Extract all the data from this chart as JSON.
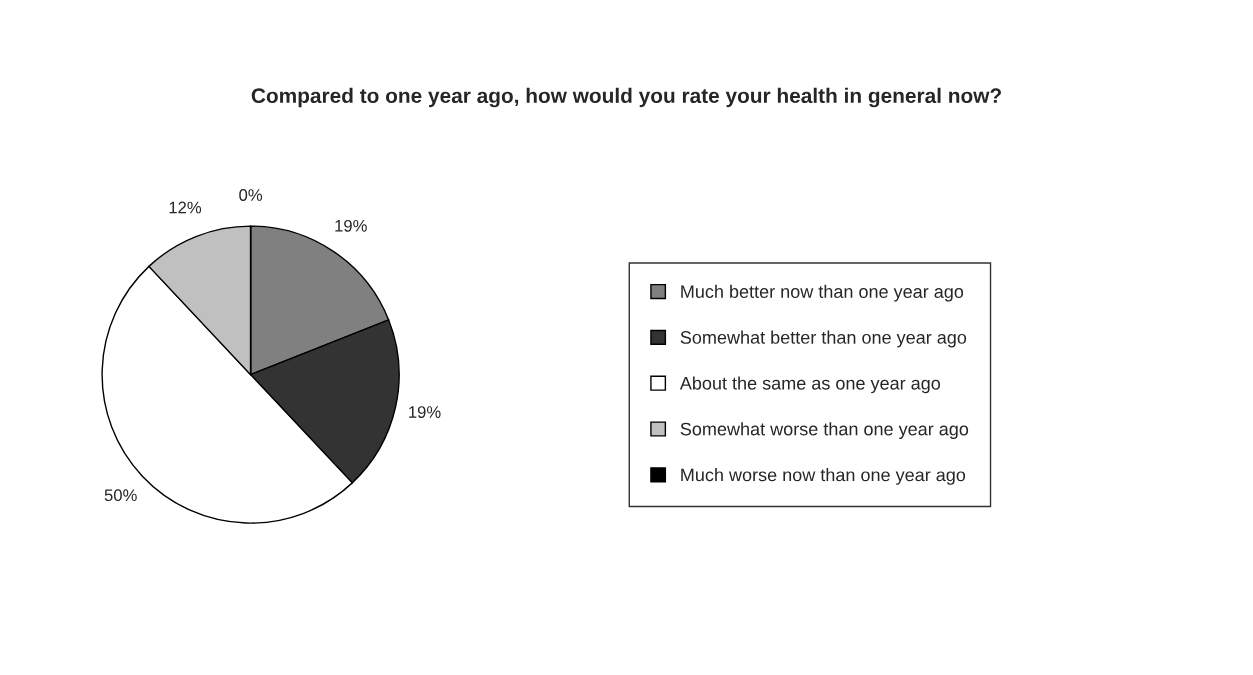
{
  "chart_data": {
    "type": "pie",
    "title": "Compared to one year ago, how would you rate your health in general now?",
    "categories": [
      "Much better now than one year ago",
      "Somewhat better than one year ago",
      "About the same as one year ago",
      "Somewhat worse than one year ago",
      "Much worse now than one year ago"
    ],
    "values": [
      19,
      19,
      50,
      12,
      0
    ],
    "colors": [
      "#808080",
      "#333333",
      "#ffffff",
      "#c0c0c0",
      "#000000"
    ],
    "value_labels": [
      "19%",
      "19%",
      "50%",
      "12%",
      "0%"
    ],
    "legend": "right"
  }
}
